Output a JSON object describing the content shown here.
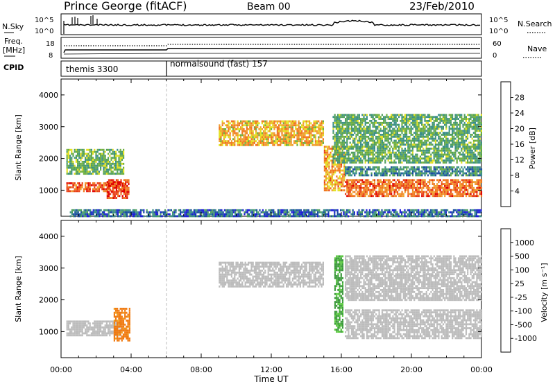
{
  "header": {
    "station": "Prince George (fitACF)",
    "beam": "Beam 00",
    "date": "23/Feb/2010"
  },
  "strips": {
    "nsky_label": "N.Sky",
    "nsearch_label": "N.Search",
    "freq_label_1": "Freq.",
    "freq_label_2": "[MHz]",
    "nave_label": "Nave",
    "cpid_label": "CPID",
    "nsky_ticks": [
      "10^5",
      "10^0"
    ],
    "nsearch_ticks": [
      "10^5",
      "10^0"
    ],
    "freq_ticks": [
      "18",
      "8"
    ],
    "nave_ticks": [
      "60",
      "0"
    ],
    "cpid_segments": [
      "themis 3300",
      "normalsound (fast) 157"
    ]
  },
  "colorbars": {
    "power_label": "Power [dB]",
    "power_ticks": [
      "28",
      "24",
      "20",
      "16",
      "12",
      "8",
      "4"
    ],
    "power_colors": [
      "#1f1fd8",
      "#1b4fa0",
      "#3a8f88",
      "#4f9f5f",
      "#70b040",
      "#e3e020",
      "#f0a030",
      "#f07820",
      "#e84018",
      "#e00000"
    ],
    "velocity_label": "Velocity [m s⁻¹]",
    "velocity_ticks": [
      "1000",
      "500",
      "100",
      "25",
      "-25",
      "-100",
      "-500",
      "-1000"
    ],
    "velocity_colors": [
      "#1a2aa8",
      "#1d6f2a",
      "#3c9a3c",
      "#5ac840",
      "#bcbcbc",
      "#f0a020",
      "#f07a10",
      "#e84010",
      "#d00000"
    ]
  },
  "axes": {
    "ylabel": "Slant Range [km]",
    "xlabel": "Time UT",
    "yticks": [
      "4000",
      "3000",
      "2000",
      "1000"
    ],
    "xticks": [
      "00:00",
      "04:00",
      "08:00",
      "12:00",
      "16:00",
      "20:00",
      "00:00"
    ]
  },
  "chart_data": [
    {
      "type": "heatmap",
      "title": "Power",
      "xlabel": "Time UT",
      "ylabel": "Slant Range [km]",
      "xlim": [
        0,
        24
      ],
      "ylim": [
        180,
        4500
      ],
      "colorbar": {
        "label": "Power [dB]",
        "range": [
          0,
          30
        ]
      },
      "series": [
        {
          "x_start": 0.3,
          "x_end": 3.6,
          "y_start": 950,
          "y_end": 1250,
          "level": 24
        },
        {
          "x_start": 0.3,
          "x_end": 3.6,
          "y_start": 1500,
          "y_end": 2300,
          "level": 12
        },
        {
          "x_start": 2.6,
          "x_end": 3.9,
          "y_start": 780,
          "y_end": 1350,
          "level": 26
        },
        {
          "x_start": 9.0,
          "x_end": 15.0,
          "y_start": 2400,
          "y_end": 3200,
          "level": 19
        },
        {
          "x_start": 15.0,
          "x_end": 16.2,
          "y_start": 1000,
          "y_end": 2400,
          "level": 20
        },
        {
          "x_start": 16.2,
          "x_end": 24.0,
          "y_start": 850,
          "y_end": 1350,
          "level": 23
        },
        {
          "x_start": 16.2,
          "x_end": 24.0,
          "y_start": 1500,
          "y_end": 1750,
          "level": 8
        },
        {
          "x_start": 15.5,
          "x_end": 24.0,
          "y_start": 1900,
          "y_end": 3400,
          "level": 11
        },
        {
          "x_start": 0.5,
          "x_end": 24.0,
          "y_start": 200,
          "y_end": 400,
          "level": 6
        }
      ]
    },
    {
      "type": "heatmap",
      "title": "Velocity",
      "xlabel": "Time UT",
      "ylabel": "Slant Range [km]",
      "xlim": [
        0,
        24
      ],
      "ylim": [
        180,
        4500
      ],
      "colorbar": {
        "label": "Velocity [m s⁻¹]",
        "range": [
          -1000,
          1000
        ]
      },
      "series": [
        {
          "x_start": 0.3,
          "x_end": 3.4,
          "y_start": 900,
          "y_end": 1350,
          "level": 0
        },
        {
          "x_start": 3.0,
          "x_end": 3.9,
          "y_start": 700,
          "y_end": 1750,
          "level": -150
        },
        {
          "x_start": 9.0,
          "x_end": 15.0,
          "y_start": 2400,
          "y_end": 3200,
          "level": 0
        },
        {
          "x_start": 15.6,
          "x_end": 16.1,
          "y_start": 1000,
          "y_end": 3400,
          "level": 120
        },
        {
          "x_start": 16.2,
          "x_end": 24.0,
          "y_start": 800,
          "y_end": 1700,
          "level": 0
        },
        {
          "x_start": 16.2,
          "x_end": 24.0,
          "y_start": 2000,
          "y_end": 3400,
          "level": 0
        }
      ]
    }
  ]
}
